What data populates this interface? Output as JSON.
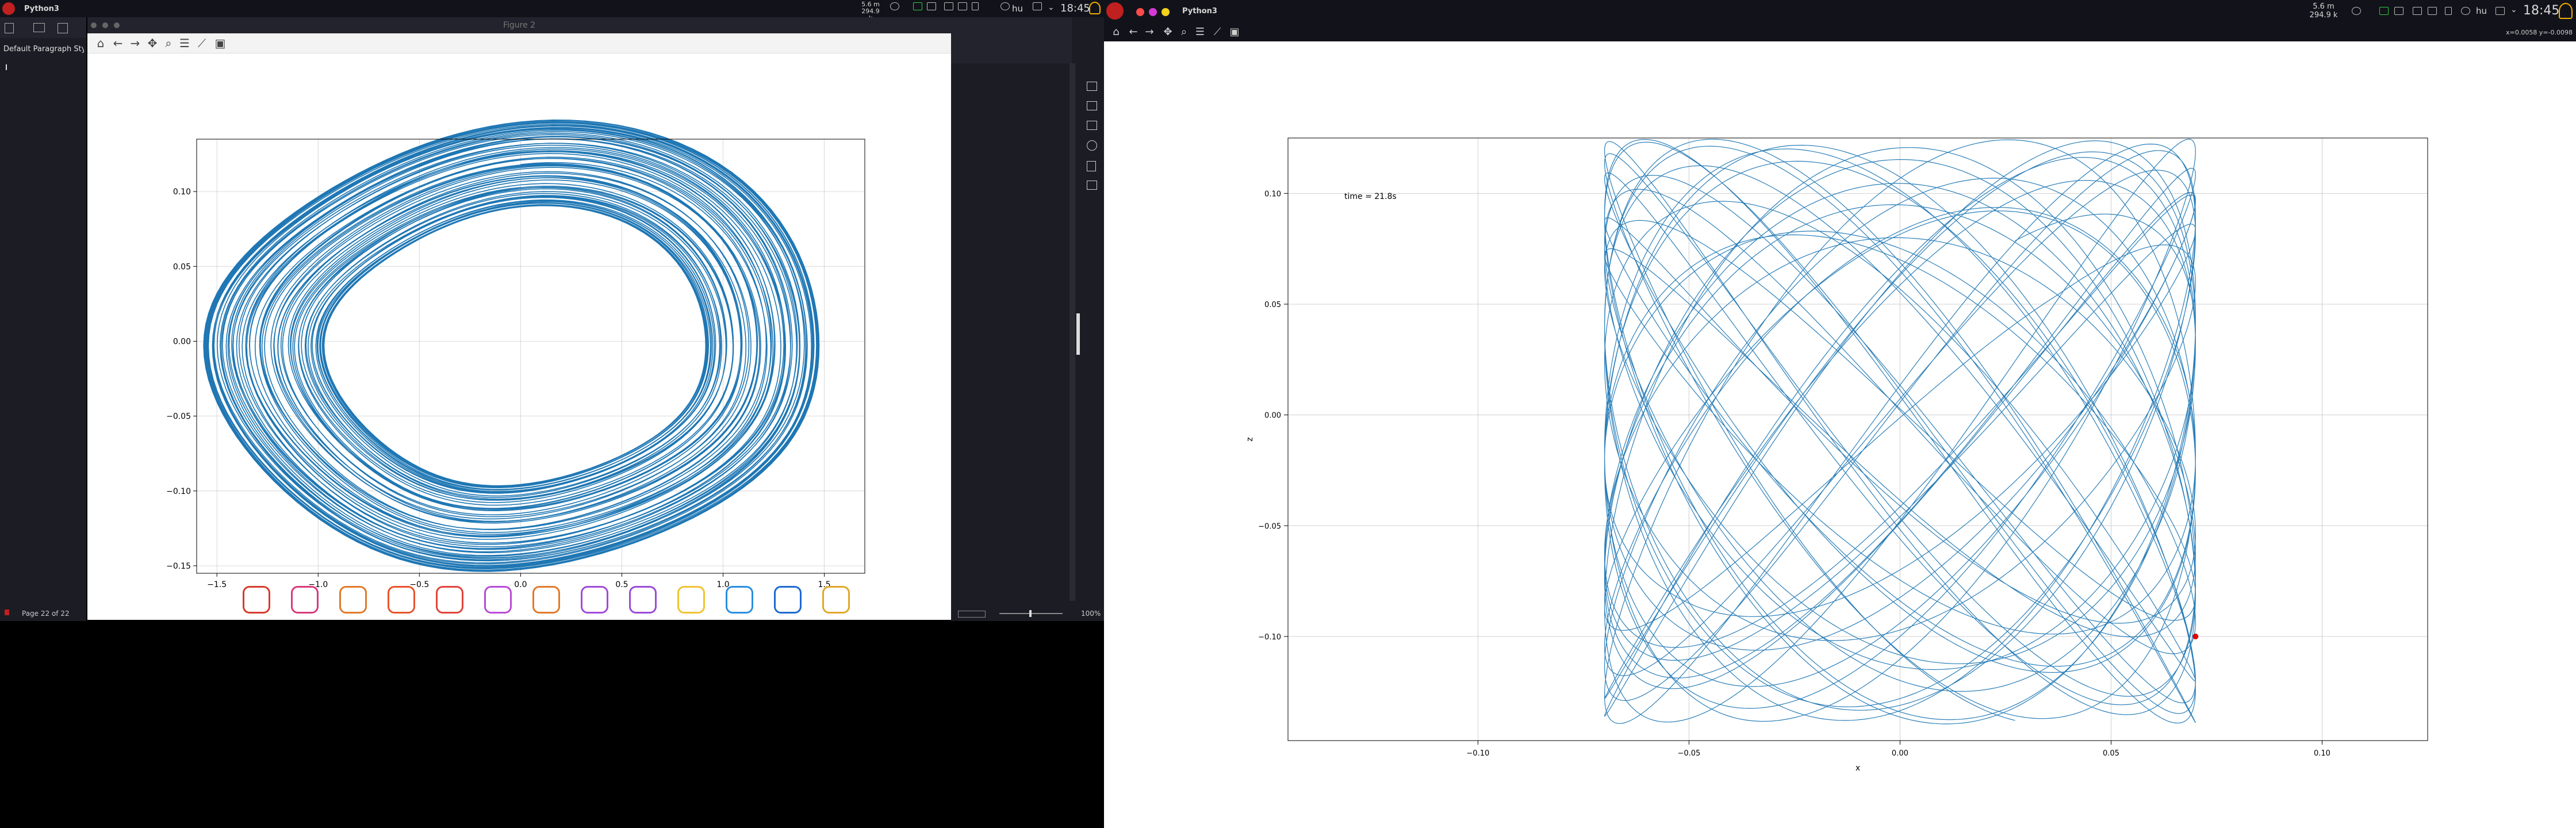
{
  "left_screen": {
    "topbar": {
      "app_name": "Python3",
      "mem_top": "5.6 m",
      "mem_bottom": "294.9 k",
      "kbd_layout": "hu",
      "clock": "18:45"
    },
    "writer": {
      "style_box": "Default Paragraph Style",
      "status_page": "Page 22 of 22",
      "zoom": "100%"
    },
    "figure_window": {
      "title": "Figure 2",
      "chart_data": {
        "type": "line",
        "title": "",
        "xlabel": "",
        "ylabel": "",
        "xlim": [
          -1.6,
          1.7
        ],
        "ylim": [
          -0.155,
          0.135
        ],
        "grid": true,
        "x_ticks": [
          "−1.5",
          "−1.0",
          "−0.5",
          "0.0",
          "0.5",
          "1.0",
          "1.5"
        ],
        "y_ticks": [
          "0.10",
          "0.05",
          "0.00",
          "−0.05",
          "−0.10",
          "−0.15"
        ],
        "series": [
          {
            "color": "#1f77b4",
            "description_values": "dense spiral phase portrait; orbits between inner ring (x ±0.55, y ±0.045) and outer ring (x ±1.5, y ±0.145)",
            "x": [
              0.0,
              0.55,
              1.0,
              1.5,
              1.0,
              0.0,
              -1.0,
              -1.5,
              -1.0,
              0.0
            ],
            "y": [
              0.125,
              0.1,
              0.08,
              0.0,
              -0.09,
              -0.145,
              -0.1,
              0.0,
              0.09,
              0.125
            ]
          }
        ]
      }
    },
    "dock_icons": [
      "kali-dragon-icon",
      "terminal-icon",
      "firefox-icon",
      "files-icon",
      "graph-app-icon",
      "burp-icon",
      "settings-gear-orange-icon",
      "settings-gear-purple-icon",
      "paint-icon",
      "yellow-app-icon",
      "blue-app-icon",
      "outlook-icon",
      "compass-icon"
    ]
  },
  "right_screen": {
    "topbar": {
      "app_name": "Python3",
      "mem_top": "5.6 m",
      "mem_bottom": "294.9 k",
      "kbd_layout": "hu",
      "clock": "18:45"
    },
    "toolbar_coords": "x=0.0058 y=-0.0098",
    "chart_data": {
      "type": "line",
      "title": "",
      "xlabel": "x",
      "ylabel": "z",
      "xlim": [
        -0.145,
        0.125
      ],
      "ylim": [
        -0.147,
        0.125
      ],
      "grid": true,
      "x_ticks": [
        "−0.10",
        "−0.05",
        "0.00",
        "0.05",
        "0.10"
      ],
      "y_ticks": [
        "0.10",
        "0.05",
        "0.00",
        "−0.05",
        "−0.10"
      ],
      "annotation": "time = 21.8s",
      "marker": {
        "x": 0.07,
        "y": -0.1,
        "color": "#e00000"
      },
      "series": [
        {
          "color": "#1f77b4",
          "description_values": "Lissajous-like trajectory filling x in [-0.07, 0.07], z in [-0.14, 0.125]",
          "x": [
            -0.07,
            0.07
          ],
          "y": [
            -0.14,
            0.125
          ]
        }
      ]
    }
  }
}
